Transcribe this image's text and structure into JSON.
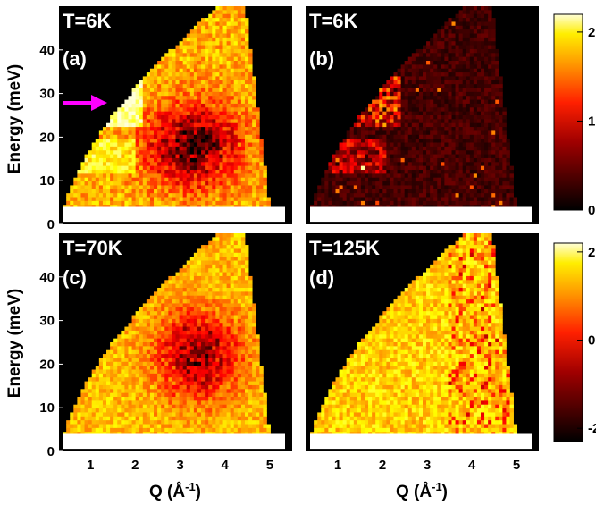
{
  "chart_data": {
    "type": "heatmap",
    "colormap": "hot",
    "panels": [
      {
        "id": "a",
        "label_temp": "T=6K",
        "label_id": "(a)",
        "colorbar": "top",
        "regime": "lowT",
        "annotation": "magenta arrow at ~28 meV"
      },
      {
        "id": "b",
        "label_temp": "T=6K",
        "label_id": "(b)",
        "colorbar": "top",
        "regime": "sparse"
      },
      {
        "id": "c",
        "label_temp": "T=70K",
        "label_id": "(c)",
        "colorbar": "bottom",
        "regime": "midT"
      },
      {
        "id": "d",
        "label_temp": "T=125K",
        "label_id": "(d)",
        "colorbar": "bottom",
        "regime": "highT"
      }
    ],
    "xlabel": "Q (Å-1)",
    "xlabel_parts": {
      "main": "Q (Å",
      "sup": "-1",
      "close": ")"
    },
    "ylabel": "Energy (meV)",
    "xlim": [
      0.3,
      5.5
    ],
    "ylim": [
      0,
      50
    ],
    "xticks": [
      "1",
      "2",
      "3",
      "4",
      "5"
    ],
    "xtick_values": [
      1,
      2,
      3,
      4,
      5
    ],
    "yticks": [
      "0",
      "10",
      "20",
      "30",
      "40"
    ],
    "ytick_values": [
      0,
      10,
      20,
      30,
      40
    ],
    "colorbar_top": {
      "ticks": [
        "2",
        "1",
        "0"
      ],
      "tick_values": [
        2,
        1,
        0
      ],
      "range": [
        0,
        2.2
      ]
    },
    "colorbar_bottom": {
      "ticks": [
        "2",
        "0",
        "-2"
      ],
      "tick_values": [
        2,
        0,
        -2
      ],
      "range": [
        -2.3,
        2.2
      ]
    },
    "arrow_color": "#ff00ff"
  }
}
